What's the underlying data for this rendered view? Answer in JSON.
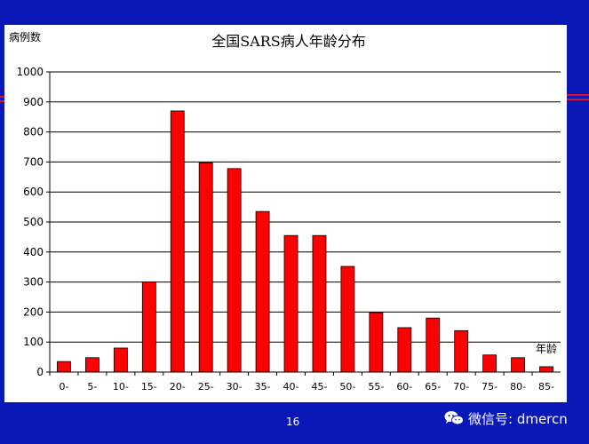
{
  "page": {
    "number": "16",
    "watermark": "微信号: dmercn",
    "icons": {
      "watermark_icon": "wechat-icon"
    },
    "colors": {
      "background": "#0b18b8",
      "bar": "#ff0000",
      "accent": "#e0102a",
      "panel": "#ffffff"
    }
  },
  "chart_data": {
    "type": "bar",
    "title": "全国SARS病人年龄分布",
    "ylabel": "病例数",
    "xlabel": "年龄",
    "ylim": [
      0,
      1000
    ],
    "yticks": [
      0,
      100,
      200,
      300,
      400,
      500,
      600,
      700,
      800,
      900,
      1000
    ],
    "grid": true,
    "categories": [
      "0-",
      "5-",
      "10-",
      "15-",
      "20-",
      "25-",
      "30-",
      "35-",
      "40-",
      "45-",
      "50-",
      "55-",
      "60-",
      "65-",
      "70-",
      "75-",
      "80-",
      "85-"
    ],
    "values": [
      35,
      48,
      80,
      300,
      870,
      697,
      678,
      535,
      455,
      455,
      352,
      198,
      148,
      180,
      138,
      57,
      48,
      18
    ]
  }
}
